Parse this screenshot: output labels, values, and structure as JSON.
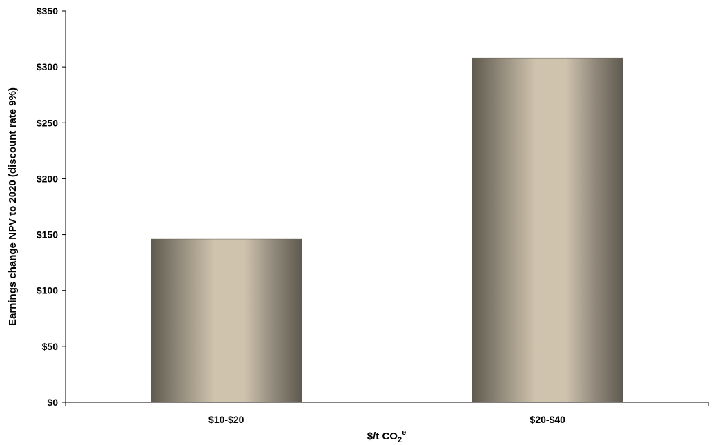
{
  "chart_data": {
    "type": "bar",
    "categories": [
      "$10-$20",
      "$20-$40"
    ],
    "values": [
      146,
      308
    ],
    "ylim": [
      0,
      350
    ],
    "ytick_step": 50,
    "ytick_labels": [
      "$0",
      "$50",
      "$100",
      "$150",
      "$200",
      "$250",
      "$300",
      "$350"
    ],
    "xlabel": "$/t CO",
    "xlabel_subscript": "2",
    "xlabel_superscript": "e",
    "ylabel": "Earnings change NPV to 2020 (discount rate 9%)",
    "grid": false,
    "legend": "none",
    "bar_colors": {
      "edge_dark": "#5f5a4f",
      "mid": "#8f877a",
      "highlight": "#cfc3ae"
    }
  }
}
